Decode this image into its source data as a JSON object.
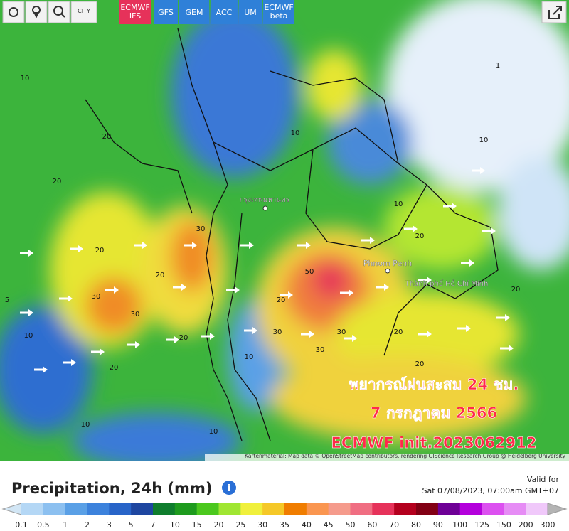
{
  "toolbar": {
    "city": "CITY",
    "models": [
      [
        "ECMWF",
        "IFS"
      ],
      [
        "GFS"
      ],
      [
        "GEM"
      ],
      [
        "ACC"
      ],
      [
        "UM"
      ],
      [
        "ECMWF",
        "beta"
      ]
    ]
  },
  "map": {
    "places": [
      "กรุงเทพมหานคร",
      "Phnom Penh",
      "Thành phố Hồ Chí Minh"
    ],
    "overlay": [
      "พยากรณ์ฝนสะสม 24 ชม.",
      "7 กรกฎาคม 2566",
      "ECMWF init.2023062912"
    ],
    "contour_labels": [
      "10",
      "20",
      "20",
      "20",
      "30",
      "30",
      "20",
      "20",
      "30",
      "10",
      "20",
      "5",
      "10",
      "10",
      "20",
      "50",
      "20",
      "30",
      "30",
      "30",
      "20",
      "20",
      "20",
      "10",
      "10",
      "10",
      "10",
      "1"
    ],
    "attribution": "Kartenmaterial: Map data © OpenStreetMap contributors, rendering GIScience Research Group @ Heidelberg University"
  },
  "panel": {
    "title": "Precipitation, 24h (mm)",
    "valid_label": "Valid for",
    "valid_time": "Sat 07/08/2023, 07:00am GMT+07",
    "scale": {
      "labels": [
        "0.1",
        "0.5",
        "1",
        "2",
        "3",
        "5",
        "7",
        "10",
        "15",
        "20",
        "25",
        "30",
        "35",
        "40",
        "45",
        "50",
        "60",
        "70",
        "80",
        "90",
        "100",
        "125",
        "150",
        "200",
        "300"
      ],
      "colors": [
        "#b4d7f5",
        "#8cc0f0",
        "#5aa0e6",
        "#3c82dc",
        "#2864c8",
        "#1e46a0",
        "#0f7d2d",
        "#1e9b1e",
        "#4bc81e",
        "#a0e632",
        "#f0f03c",
        "#f5c828",
        "#f07d00",
        "#fa9650",
        "#f59b8c",
        "#f06e82",
        "#e6325a",
        "#b4001e",
        "#820014",
        "#6e0096",
        "#b400dc",
        "#dc50f0",
        "#e68cf5",
        "#f0c8fa"
      ],
      "low_color": "#d2e6f5",
      "high_color": "#b4b4b4"
    }
  }
}
